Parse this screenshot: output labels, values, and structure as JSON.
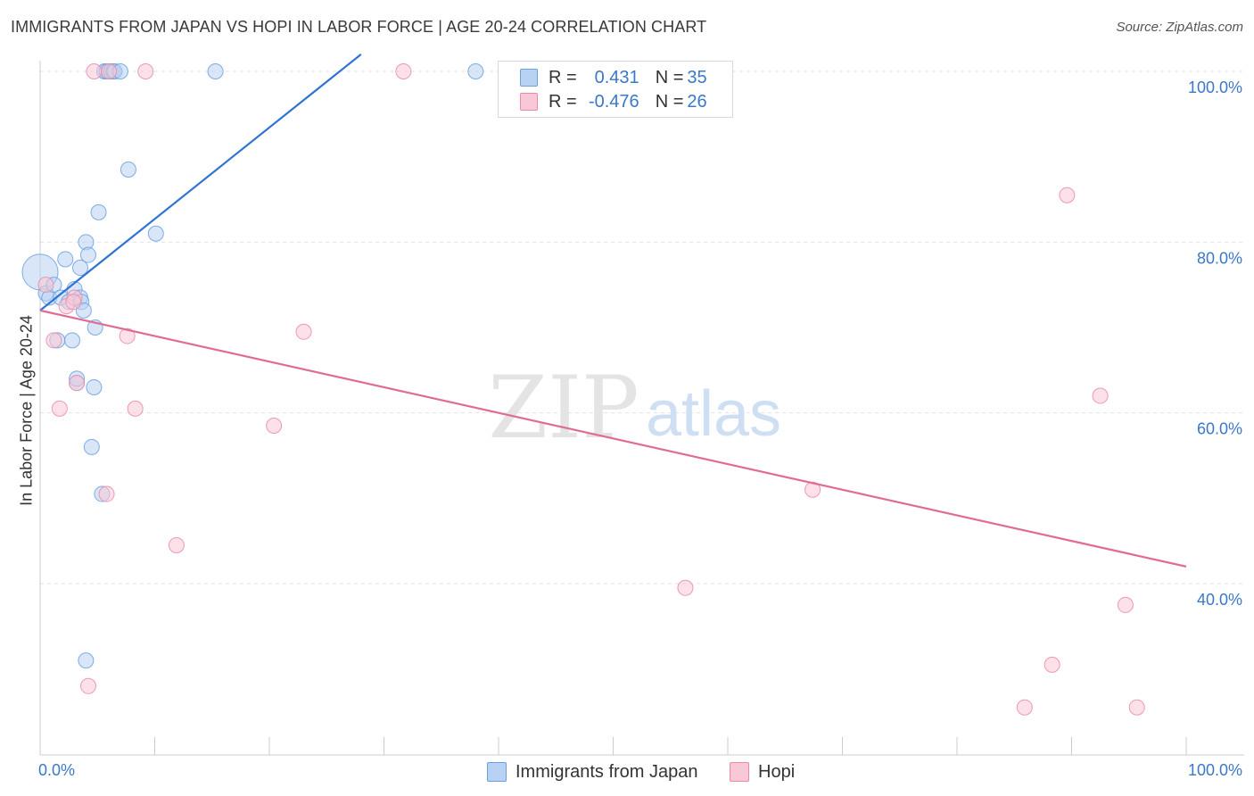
{
  "header": {
    "title": "IMMIGRANTS FROM JAPAN VS HOPI IN LABOR FORCE | AGE 20-24 CORRELATION CHART",
    "source": "Source: ZipAtlas.com"
  },
  "watermark": {
    "zip": "ZIP",
    "atlas": "atlas"
  },
  "legend": {
    "rows": [
      {
        "r_label": "R = ",
        "r_value": "0.431",
        "n_label": "N = ",
        "n_value": "35",
        "color": "#6a9fe0"
      },
      {
        "r_label": "R = ",
        "r_value": "-0.476",
        "n_label": "N = ",
        "n_value": "26",
        "color": "#e98aa7"
      }
    ]
  },
  "bottom_legend": {
    "series_a": "Immigrants from Japan",
    "series_b": "Hopi"
  },
  "chart_data": {
    "type": "scatter",
    "title": "IMMIGRANTS FROM JAPAN VS HOPI IN LABOR FORCE | AGE 20-24 CORRELATION CHART",
    "xlabel": "",
    "ylabel": "In Labor Force | Age 20-24",
    "xlim": [
      0,
      100
    ],
    "ylim": [
      22,
      102
    ],
    "x_tick_labels": [
      "0.0%",
      "100.0%"
    ],
    "y_ticks": [
      40,
      60,
      80,
      100
    ],
    "y_tick_labels": [
      "40.0%",
      "60.0%",
      "80.0%",
      "100.0%"
    ],
    "grid": true,
    "series": [
      {
        "name": "Immigrants from Japan",
        "color": "#6a9fe0",
        "fill": "#b8d2f3",
        "r": 0.431,
        "n": 35,
        "trend": {
          "x0": 0,
          "y0": 72,
          "x1": 28,
          "y1": 102
        },
        "points": [
          {
            "x": 0.0,
            "y": 76.5,
            "big": true
          },
          {
            "x": 0.5,
            "y": 74
          },
          {
            "x": 0.8,
            "y": 73.5
          },
          {
            "x": 1.2,
            "y": 75
          },
          {
            "x": 1.5,
            "y": 68.5
          },
          {
            "x": 1.8,
            "y": 73.5
          },
          {
            "x": 2.2,
            "y": 78
          },
          {
            "x": 2.5,
            "y": 73
          },
          {
            "x": 2.8,
            "y": 68.5
          },
          {
            "x": 3.0,
            "y": 74.5
          },
          {
            "x": 3.2,
            "y": 63.5
          },
          {
            "x": 3.2,
            "y": 64
          },
          {
            "x": 3.5,
            "y": 77
          },
          {
            "x": 3.5,
            "y": 73.5
          },
          {
            "x": 3.6,
            "y": 73
          },
          {
            "x": 3.8,
            "y": 72
          },
          {
            "x": 4.0,
            "y": 80
          },
          {
            "x": 4.2,
            "y": 78.5
          },
          {
            "x": 4.5,
            "y": 56
          },
          {
            "x": 4.7,
            "y": 63
          },
          {
            "x": 4.8,
            "y": 70
          },
          {
            "x": 5.1,
            "y": 83.5
          },
          {
            "x": 5.4,
            "y": 50.5
          },
          {
            "x": 5.6,
            "y": 100
          },
          {
            "x": 5.8,
            "y": 100
          },
          {
            "x": 6.0,
            "y": 100
          },
          {
            "x": 6.2,
            "y": 100
          },
          {
            "x": 6.4,
            "y": 100
          },
          {
            "x": 6.5,
            "y": 100
          },
          {
            "x": 7.0,
            "y": 100
          },
          {
            "x": 7.7,
            "y": 88.5
          },
          {
            "x": 10.1,
            "y": 81
          },
          {
            "x": 15.3,
            "y": 100
          },
          {
            "x": 38.0,
            "y": 100
          },
          {
            "x": 4.0,
            "y": 31
          }
        ]
      },
      {
        "name": "Hopi",
        "color": "#e98aa7",
        "fill": "#f9c8d6",
        "r": -0.476,
        "n": 26,
        "trend": {
          "x0": 0,
          "y0": 72,
          "x1": 100,
          "y1": 42
        },
        "points": [
          {
            "x": 0.5,
            "y": 75
          },
          {
            "x": 1.2,
            "y": 68.5
          },
          {
            "x": 1.7,
            "y": 60.5
          },
          {
            "x": 2.3,
            "y": 72.5
          },
          {
            "x": 3.0,
            "y": 73.5
          },
          {
            "x": 3.2,
            "y": 63.5
          },
          {
            "x": 4.2,
            "y": 28
          },
          {
            "x": 4.7,
            "y": 100
          },
          {
            "x": 5.8,
            "y": 50.5
          },
          {
            "x": 6.0,
            "y": 100
          },
          {
            "x": 7.6,
            "y": 69
          },
          {
            "x": 8.3,
            "y": 60.5
          },
          {
            "x": 9.2,
            "y": 100
          },
          {
            "x": 11.9,
            "y": 44.5
          },
          {
            "x": 20.4,
            "y": 58.5
          },
          {
            "x": 23.0,
            "y": 69.5
          },
          {
            "x": 31.7,
            "y": 100
          },
          {
            "x": 56.3,
            "y": 39.5
          },
          {
            "x": 67.4,
            "y": 51
          },
          {
            "x": 85.9,
            "y": 25.5
          },
          {
            "x": 88.3,
            "y": 30.5
          },
          {
            "x": 89.6,
            "y": 85.5
          },
          {
            "x": 92.5,
            "y": 62
          },
          {
            "x": 94.7,
            "y": 37.5
          },
          {
            "x": 95.7,
            "y": 25.5
          },
          {
            "x": 2.9,
            "y": 73
          }
        ]
      }
    ]
  }
}
